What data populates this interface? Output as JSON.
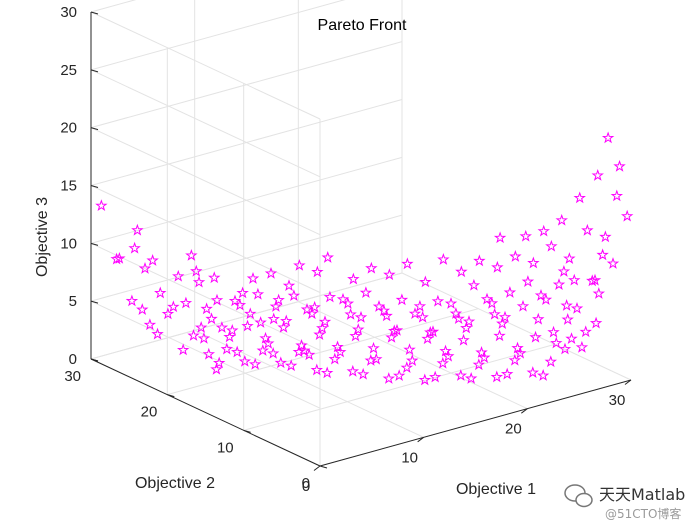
{
  "watermark": {
    "text": "天天Matlab",
    "subtext": "@51CTO博客"
  },
  "chart_data": {
    "type": "scatter3d",
    "title": "Pareto Front",
    "xlabel": "Objective 1",
    "ylabel": "Objective 2",
    "zlabel": "Objective 3",
    "xlim": [
      0,
      30
    ],
    "ylim": [
      0,
      30
    ],
    "zlim": [
      0,
      30
    ],
    "xticks": [
      "0",
      "10",
      "20",
      "30"
    ],
    "yticks": [
      "0",
      "10",
      "20",
      "30"
    ],
    "zticks": [
      "0",
      "5",
      "10",
      "15",
      "20",
      "25",
      "30"
    ],
    "grid": true,
    "marker": "pentagram",
    "marker_color": "#ff00ff",
    "points": [
      [
        1,
        30,
        13
      ],
      [
        2,
        29,
        8.5
      ],
      [
        3,
        27,
        8
      ],
      [
        1,
        26,
        6
      ],
      [
        3,
        25,
        6.5
      ],
      [
        5,
        26,
        4.5
      ],
      [
        6,
        24,
        7
      ],
      [
        7,
        23,
        5.5
      ],
      [
        2,
        24,
        3.5
      ],
      [
        4,
        22,
        3.5
      ],
      [
        6,
        21,
        4
      ],
      [
        8,
        22,
        5.5
      ],
      [
        9,
        20,
        4
      ],
      [
        10,
        19,
        6
      ],
      [
        11,
        21,
        3.5
      ],
      [
        12,
        18,
        5
      ],
      [
        13,
        17,
        4
      ],
      [
        14,
        16,
        6
      ],
      [
        15,
        15,
        4.5
      ],
      [
        16,
        14,
        5.5
      ],
      [
        17,
        13,
        3.5
      ],
      [
        18,
        12,
        5
      ],
      [
        19,
        11,
        3.5
      ],
      [
        20,
        10,
        6
      ],
      [
        21,
        9,
        4.5
      ],
      [
        22,
        8,
        6.5
      ],
      [
        23,
        7,
        5
      ],
      [
        24,
        6,
        6
      ],
      [
        25,
        5,
        7
      ],
      [
        26,
        4,
        8
      ],
      [
        27,
        3,
        6
      ],
      [
        28,
        2,
        8.5
      ],
      [
        29,
        1,
        10
      ],
      [
        30,
        0.5,
        14
      ],
      [
        29,
        0.5,
        16
      ],
      [
        30,
        1.5,
        18
      ],
      [
        28,
        1,
        11
      ],
      [
        27,
        1,
        9
      ],
      [
        26,
        2,
        9
      ],
      [
        25,
        2,
        10
      ],
      [
        24,
        3,
        7.5
      ],
      [
        23,
        4,
        9
      ],
      [
        22,
        5,
        8
      ],
      [
        21,
        6,
        7
      ],
      [
        20,
        7,
        8.5
      ],
      [
        19,
        8,
        6
      ],
      [
        18,
        9,
        7
      ],
      [
        17,
        10,
        6.5
      ],
      [
        16,
        11,
        7
      ],
      [
        15,
        12,
        6
      ],
      [
        14,
        13,
        7.5
      ],
      [
        13,
        14,
        6.5
      ],
      [
        12,
        15,
        7
      ],
      [
        11,
        16,
        5.5
      ],
      [
        10,
        17,
        7
      ],
      [
        9,
        18,
        6
      ],
      [
        8,
        19,
        7
      ],
      [
        7,
        20,
        6
      ],
      [
        6,
        22,
        8
      ],
      [
        5,
        23,
        8.5
      ],
      [
        4,
        24,
        8
      ],
      [
        3,
        26,
        9
      ],
      [
        2,
        27,
        10
      ],
      [
        1,
        28,
        9
      ],
      [
        2,
        26,
        5
      ],
      [
        3,
        24,
        5
      ],
      [
        4,
        20,
        2.5
      ],
      [
        5,
        19,
        3
      ],
      [
        6,
        18,
        2
      ],
      [
        7,
        17,
        3
      ],
      [
        8,
        16,
        2
      ],
      [
        9,
        15,
        3
      ],
      [
        10,
        14,
        1.5
      ],
      [
        11,
        13,
        2.5
      ],
      [
        12,
        12,
        1.5
      ],
      [
        13,
        11,
        2.5
      ],
      [
        14,
        10,
        1
      ],
      [
        15,
        9,
        2
      ],
      [
        16,
        8,
        1
      ],
      [
        17,
        7,
        2.5
      ],
      [
        18,
        6,
        1.5
      ],
      [
        19,
        5,
        2.5
      ],
      [
        20,
        4,
        1.5
      ],
      [
        21,
        3,
        3
      ],
      [
        22,
        2,
        2
      ],
      [
        23,
        1,
        3
      ],
      [
        24,
        0.5,
        4
      ],
      [
        25,
        1,
        4.5
      ],
      [
        26,
        0.5,
        5
      ],
      [
        27,
        0.5,
        5.5
      ],
      [
        3,
        22,
        2.5
      ],
      [
        4,
        21,
        4.5
      ],
      [
        5,
        21,
        5
      ],
      [
        6,
        20,
        3.5
      ],
      [
        7,
        19,
        4.5
      ],
      [
        8,
        18,
        3.5
      ],
      [
        9,
        17,
        4.5
      ],
      [
        10,
        16,
        3
      ],
      [
        11,
        15,
        4
      ],
      [
        12,
        14,
        3
      ],
      [
        13,
        13,
        4
      ],
      [
        14,
        12,
        3
      ],
      [
        15,
        11,
        4
      ],
      [
        16,
        10,
        3
      ],
      [
        17,
        9,
        4
      ],
      [
        18,
        8,
        3
      ],
      [
        19,
        7,
        4
      ],
      [
        20,
        6,
        3
      ],
      [
        21,
        5,
        4.5
      ],
      [
        22,
        4,
        3.5
      ],
      [
        23,
        3,
        4.5
      ],
      [
        24,
        2,
        5
      ],
      [
        25,
        1.5,
        6
      ],
      [
        9,
        21,
        7.5
      ],
      [
        11,
        19,
        7
      ],
      [
        13,
        18,
        8
      ],
      [
        15,
        16,
        7.5
      ],
      [
        17,
        14,
        8
      ],
      [
        19,
        12,
        7.5
      ],
      [
        21,
        10,
        8.5
      ],
      [
        23,
        8,
        9
      ],
      [
        25,
        6,
        9.5
      ],
      [
        27,
        4,
        10
      ],
      [
        29,
        2,
        12
      ],
      [
        28,
        3,
        12.5
      ],
      [
        26,
        5,
        11
      ],
      [
        24,
        7,
        10
      ],
      [
        5,
        22,
        3
      ],
      [
        7,
        21,
        3.5
      ],
      [
        9,
        19,
        2.5
      ],
      [
        11,
        17,
        2
      ],
      [
        13,
        15,
        2
      ],
      [
        15,
        13,
        1.5
      ],
      [
        17,
        11,
        1.5
      ],
      [
        19,
        9,
        2
      ],
      [
        21,
        7,
        2
      ],
      [
        23,
        5,
        2.5
      ],
      [
        25,
        3,
        3.5
      ],
      [
        26,
        1,
        3.5
      ],
      [
        2,
        25,
        4
      ],
      [
        4,
        23,
        6
      ],
      [
        6,
        23,
        5
      ],
      [
        8,
        20,
        5
      ],
      [
        10,
        18,
        4.5
      ],
      [
        12,
        16,
        4
      ],
      [
        14,
        14,
        4
      ],
      [
        16,
        12,
        4
      ],
      [
        18,
        10,
        4
      ],
      [
        20,
        8,
        4.5
      ],
      [
        22,
        6,
        5
      ],
      [
        24,
        4,
        5.5
      ],
      [
        26,
        3,
        6.5
      ],
      [
        28,
        1.5,
        7.5
      ],
      [
        10,
        20,
        8
      ],
      [
        12,
        19,
        8.5
      ],
      [
        14,
        18,
        9
      ],
      [
        16,
        15,
        8.5
      ],
      [
        18,
        13,
        9
      ],
      [
        20,
        11,
        9.5
      ],
      [
        22,
        9,
        9.5
      ],
      [
        8,
        21,
        6.5
      ],
      [
        6,
        25,
        9
      ],
      [
        3,
        28,
        11
      ],
      [
        30,
        3,
        20
      ],
      [
        29,
        3,
        17
      ],
      [
        28,
        4,
        15
      ],
      [
        27,
        5,
        13
      ],
      [
        26,
        6,
        12
      ],
      [
        25,
        7,
        11.5
      ],
      [
        24,
        9,
        11
      ],
      [
        5,
        20,
        1.5
      ],
      [
        7,
        18,
        1.5
      ],
      [
        9,
        16,
        1.5
      ],
      [
        11,
        14,
        1
      ],
      [
        13,
        12,
        1
      ],
      [
        15,
        10,
        1
      ],
      [
        17,
        8,
        1
      ],
      [
        19,
        6,
        1
      ],
      [
        21,
        4,
        1.5
      ],
      [
        23,
        2,
        1.5
      ],
      [
        14,
        15,
        5
      ],
      [
        16,
        13,
        5
      ],
      [
        18,
        11,
        5
      ],
      [
        20,
        9,
        5
      ],
      [
        22,
        7,
        5.5
      ],
      [
        12,
        17,
        5.5
      ],
      [
        10,
        15,
        2.5
      ],
      [
        8,
        17,
        2.5
      ],
      [
        6,
        19,
        2.5
      ],
      [
        4,
        19,
        1.5
      ]
    ]
  }
}
